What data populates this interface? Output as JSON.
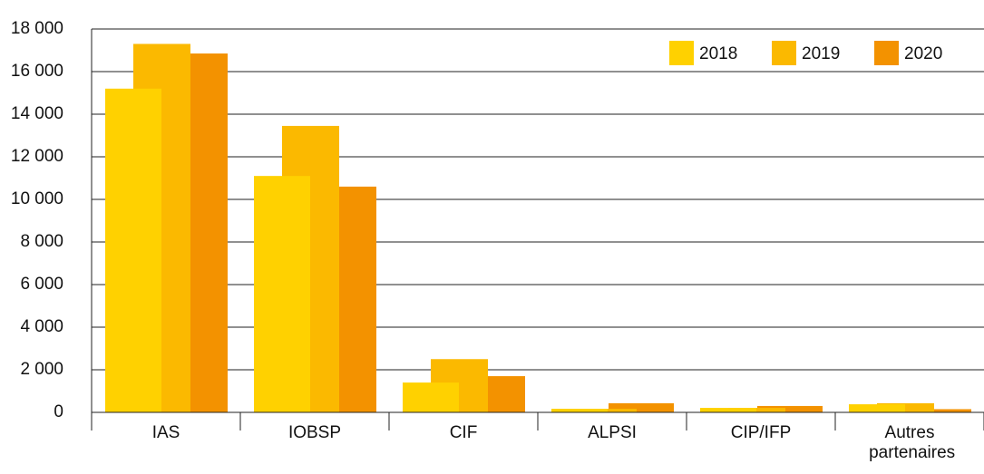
{
  "chart_data": {
    "type": "bar",
    "categories": [
      "IAS",
      "IOBSP",
      "CIF",
      "ALPSI",
      "CIP/IFP",
      "Autres partenaires"
    ],
    "series": [
      {
        "name": "2018",
        "color": "#ffd100",
        "values": [
          15200,
          11100,
          1400,
          170,
          210,
          380
        ]
      },
      {
        "name": "2019",
        "color": "#fbb900",
        "values": [
          17300,
          13450,
          2500,
          170,
          210,
          430
        ]
      },
      {
        "name": "2020",
        "color": "#f39200",
        "values": [
          16850,
          10600,
          1700,
          430,
          300,
          150
        ]
      }
    ],
    "ylim": [
      0,
      18000
    ],
    "yticks": [
      0,
      {
        "value": 2000,
        "label": "2 000"
      },
      {
        "value": 4000,
        "label": "4 000"
      },
      {
        "value": 6000,
        "label": "6 000"
      },
      {
        "value": 8000,
        "label": "8 000"
      },
      {
        "value": 10000,
        "label": "10 000"
      },
      {
        "value": 12000,
        "label": "12 000"
      },
      {
        "value": 14000,
        "label": "14 000"
      },
      {
        "value": 16000,
        "label": "16 000"
      },
      {
        "value": 18000,
        "label": "18 000"
      }
    ],
    "grid": true,
    "legend": "top-right"
  }
}
